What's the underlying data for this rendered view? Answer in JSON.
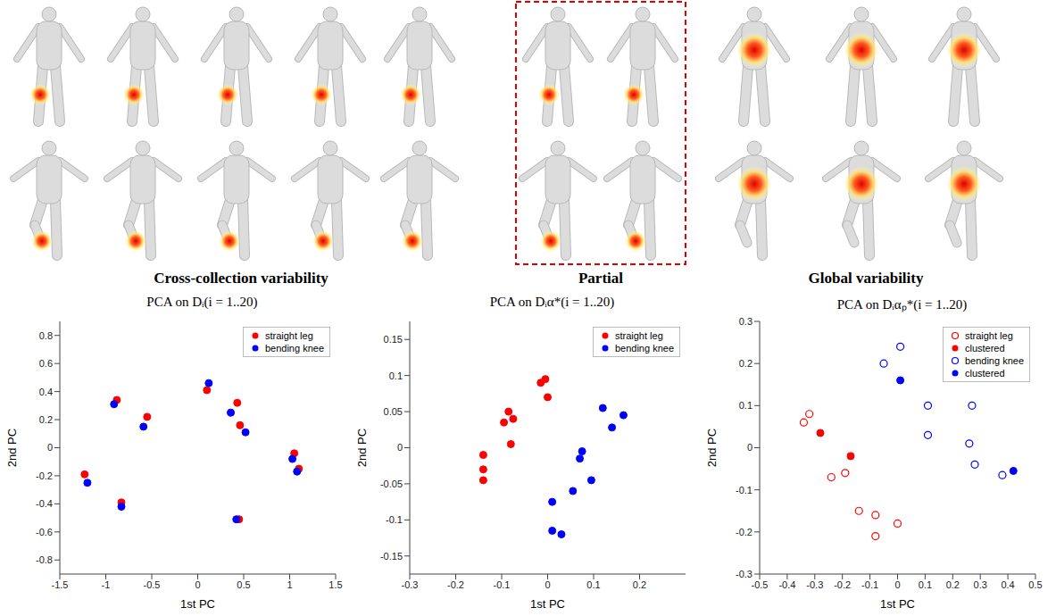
{
  "captions": {
    "left": "Cross-collection variability",
    "middle": "Partial",
    "right": "Global variability"
  },
  "chart_data": [
    {
      "type": "scatter",
      "title": "PCA on Dᵢ(i = 1..20)",
      "x_label": "1st PC",
      "y_label": "2nd PC",
      "xlim": [
        -1.5,
        1.5
      ],
      "xticks": [
        -1.5,
        -1,
        -0.5,
        0,
        0.5,
        1,
        1.5
      ],
      "ylim": [
        -0.9,
        0.9
      ],
      "yticks": [
        -0.8,
        -0.6,
        -0.4,
        -0.2,
        0,
        0.2,
        0.4,
        0.6,
        0.8
      ],
      "grid": false,
      "legend": "upper right",
      "series": [
        {
          "name": "straight leg",
          "color": "#ff0000",
          "marker": "circle",
          "x": [
            -1.23,
            -0.88,
            -0.83,
            -0.55,
            0.1,
            0.43,
            0.45,
            0.46,
            1.05,
            1.1
          ],
          "values": [
            -0.19,
            0.34,
            -0.39,
            0.22,
            0.41,
            0.32,
            -0.51,
            0.16,
            -0.04,
            -0.15
          ]
        },
        {
          "name": "bending knee",
          "color": "#0000ff",
          "marker": "circle",
          "x": [
            -1.2,
            -0.91,
            -0.83,
            -0.59,
            0.12,
            0.36,
            0.42,
            0.52,
            1.03,
            1.08
          ],
          "values": [
            -0.25,
            0.31,
            -0.42,
            0.15,
            0.46,
            0.25,
            -0.51,
            0.11,
            -0.08,
            -0.17
          ]
        }
      ]
    },
    {
      "type": "scatter",
      "title": "PCA on Dᵢα*(i = 1..20)",
      "x_label": "1st PC",
      "y_label": "2nd PC",
      "xlim": [
        -0.3,
        0.3
      ],
      "xticks": [
        -0.3,
        -0.2,
        -0.1,
        0,
        0.1,
        0.2
      ],
      "ylim": [
        -0.175,
        0.175
      ],
      "yticks": [
        -0.15,
        -0.1,
        -0.05,
        0,
        0.05,
        0.1,
        0.15
      ],
      "grid": false,
      "legend": "upper right",
      "series": [
        {
          "name": "straight leg",
          "color": "#ff0000",
          "marker": "circle",
          "x": [
            -0.14,
            -0.14,
            -0.14,
            -0.095,
            -0.085,
            -0.075,
            -0.08,
            -0.015,
            -0.005,
            0
          ],
          "values": [
            -0.01,
            -0.03,
            -0.045,
            0.035,
            0.05,
            0.04,
            0.005,
            0.09,
            0.095,
            0.07
          ]
        },
        {
          "name": "bending knee",
          "color": "#0000ff",
          "marker": "circle",
          "x": [
            0.01,
            0.01,
            0.03,
            0.055,
            0.07,
            0.075,
            0.095,
            0.12,
            0.14,
            0.165
          ],
          "values": [
            -0.075,
            -0.115,
            -0.12,
            -0.06,
            -0.015,
            -0.005,
            -0.045,
            0.055,
            0.028,
            0.045
          ]
        }
      ]
    },
    {
      "type": "scatter",
      "title": "PCA on Dᵢαₚ*(i = 1..20)",
      "x_label": "1st PC",
      "y_label": "2nd PC",
      "xlim": [
        -0.5,
        0.5
      ],
      "xticks": [
        -0.5,
        -0.4,
        -0.3,
        -0.2,
        -0.1,
        0,
        0.1,
        0.2,
        0.3,
        0.4,
        0.5
      ],
      "ylim": [
        -0.3,
        0.3
      ],
      "yticks": [
        -0.3,
        -0.2,
        -0.1,
        0,
        0.1,
        0.2,
        0.3
      ],
      "grid": false,
      "legend": "upper right",
      "series": [
        {
          "name": "straight leg",
          "color": "#ff0000",
          "marker": "open_circle",
          "x": [
            -0.34,
            -0.32,
            -0.24,
            -0.19,
            -0.14,
            -0.08,
            -0.08,
            0
          ],
          "values": [
            0.06,
            0.08,
            -0.07,
            -0.06,
            -0.15,
            -0.16,
            -0.21,
            -0.18
          ]
        },
        {
          "name": "clustered",
          "color": "#ff0000",
          "marker": "circle",
          "x": [
            -0.28,
            -0.17
          ],
          "values": [
            0.035,
            -0.02
          ]
        },
        {
          "name": "bending knee",
          "color": "#0000ff",
          "marker": "open_circle",
          "x": [
            -0.05,
            0.01,
            0.11,
            0.11,
            0.26,
            0.27,
            0.28,
            0.38
          ],
          "values": [
            0.2,
            0.24,
            0.1,
            0.03,
            0.01,
            0.1,
            -0.04,
            -0.065
          ]
        },
        {
          "name": "clustered",
          "color": "#0000ff",
          "marker": "circle",
          "x": [
            0.01,
            0.42
          ],
          "values": [
            0.16,
            -0.055
          ]
        }
      ]
    }
  ]
}
